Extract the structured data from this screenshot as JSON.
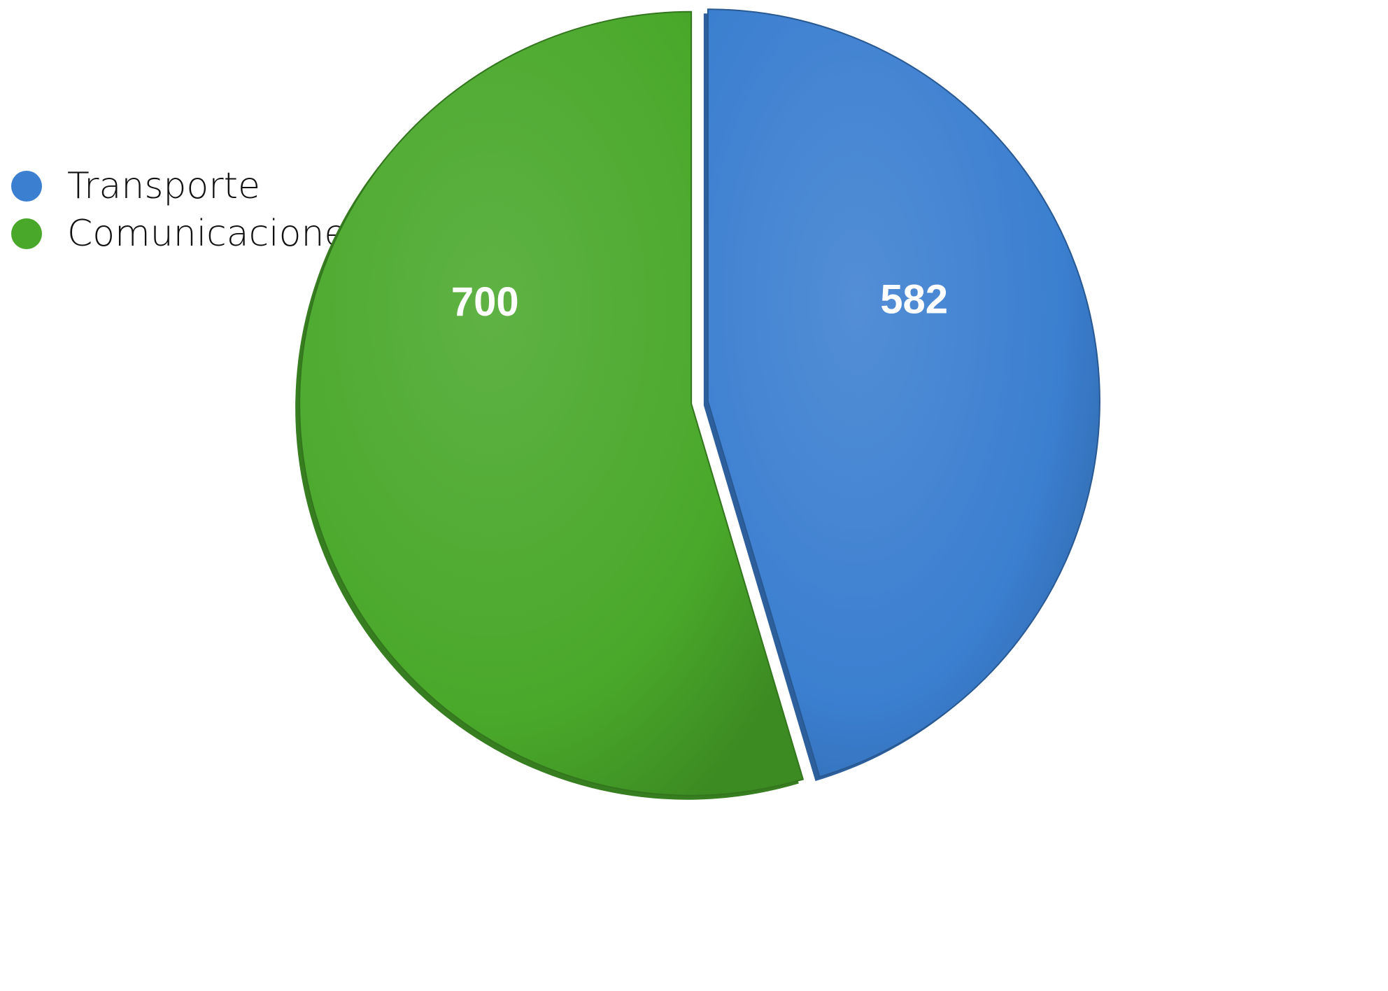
{
  "chart_data": {
    "type": "pie",
    "style": "3d-exploded",
    "categories": [
      "Transporte",
      "Comunicaciones"
    ],
    "values": [
      582,
      700
    ],
    "colors": [
      "#3b7fd0",
      "#49a82a"
    ],
    "data_labels": [
      "582",
      "700"
    ],
    "title": "",
    "legend": "left",
    "grid": false
  }
}
